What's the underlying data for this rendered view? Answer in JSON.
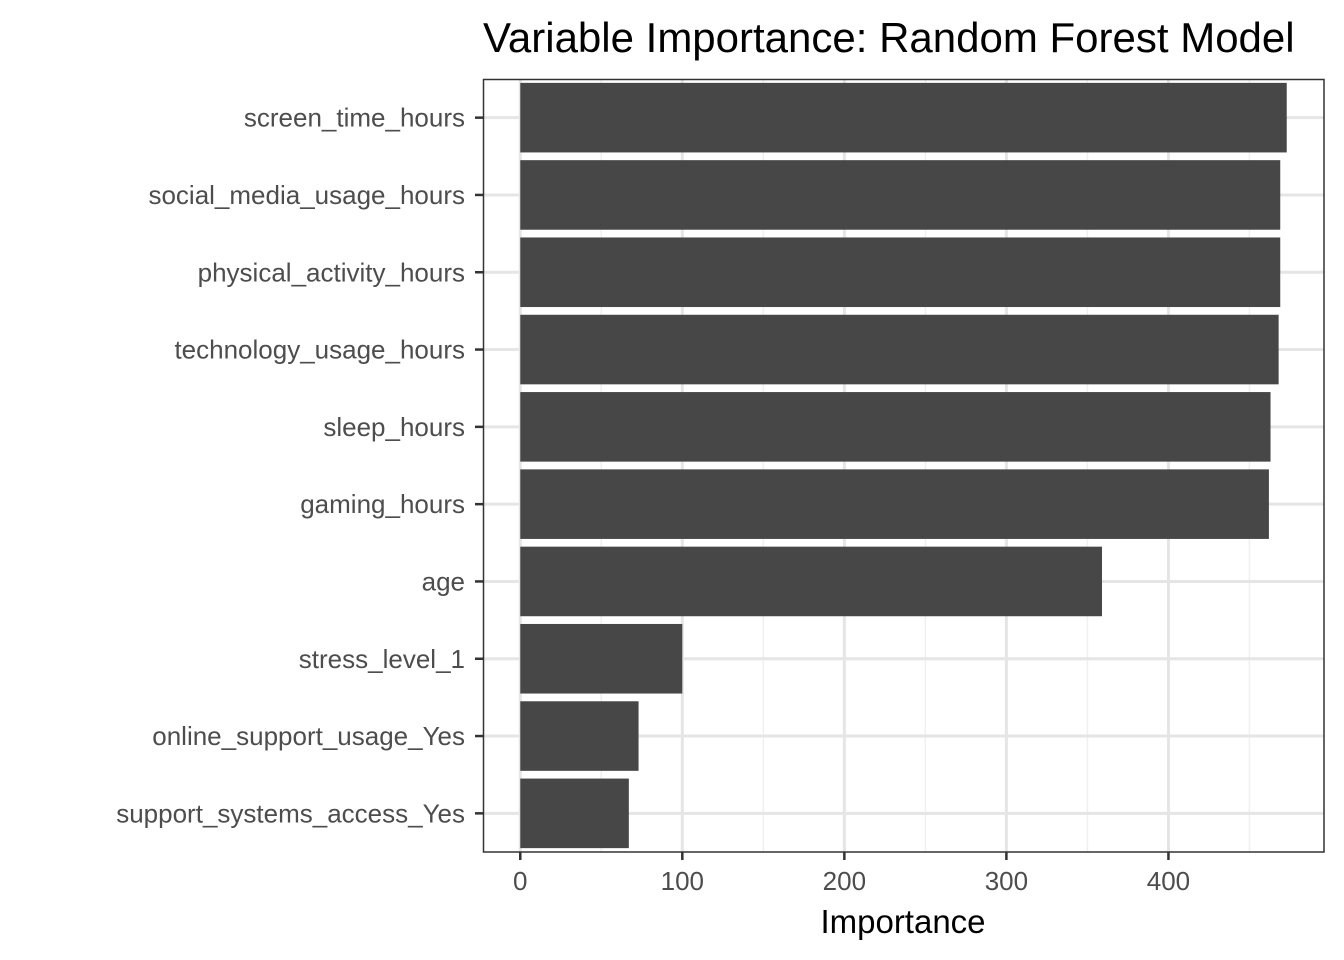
{
  "chart_data": {
    "type": "bar",
    "orientation": "horizontal",
    "title": "Variable Importance: Random Forest Model",
    "xlabel": "Importance",
    "ylabel": "",
    "categories": [
      "screen_time_hours",
      "social_media_usage_hours",
      "physical_activity_hours",
      "technology_usage_hours",
      "sleep_hours",
      "gaming_hours",
      "age",
      "stress_level_1",
      "online_support_usage_Yes",
      "support_systems_access_Yes"
    ],
    "values": [
      473,
      469,
      469,
      468,
      463,
      462,
      359,
      100,
      73,
      67
    ],
    "xlim": [
      -23,
      496
    ],
    "xticks": [
      0,
      100,
      200,
      300,
      400
    ],
    "grid": true,
    "bar_color": "#474747",
    "theme": "bw"
  }
}
